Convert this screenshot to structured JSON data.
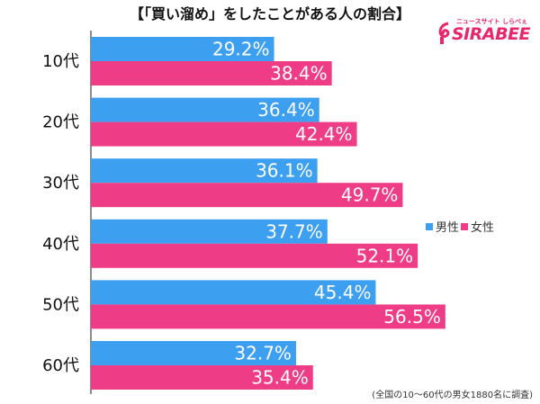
{
  "title": "【「買い溜め」をしたことがある人の割合】",
  "logo": {
    "text": "SIRABEE",
    "sub": "ニュースサイト しらべぇ"
  },
  "source": "(全国の10〜60代の男女1880名に調査)",
  "colors": {
    "male": "#3c9ff0",
    "female": "#ee3c86"
  },
  "chart_data": {
    "type": "bar",
    "orientation": "horizontal",
    "title": "【「買い溜め」をしたことがある人の割合】",
    "categories": [
      "10代",
      "20代",
      "30代",
      "40代",
      "50代",
      "60代"
    ],
    "series": [
      {
        "name": "男性",
        "values": [
          29.2,
          36.4,
          36.1,
          37.7,
          45.4,
          32.7
        ],
        "labels": [
          "29.2%",
          "36.4%",
          "36.1%",
          "37.7%",
          "45.4%",
          "32.7%"
        ]
      },
      {
        "name": "女性",
        "values": [
          38.4,
          42.4,
          49.7,
          52.1,
          56.5,
          35.4
        ],
        "labels": [
          "38.4%",
          "42.4%",
          "49.7%",
          "52.1%",
          "56.5%",
          "35.4%"
        ]
      }
    ],
    "xlim": [
      0,
      68
    ],
    "legend": "right"
  }
}
